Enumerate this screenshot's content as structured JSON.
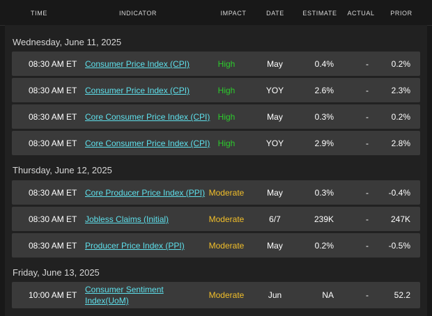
{
  "columns": {
    "time": "TIME",
    "indicator": "INDICATOR",
    "impact": "IMPACT",
    "date": "DATE",
    "estimate": "ESTIMATE",
    "actual": "ACTUAL",
    "prior": "PRIOR"
  },
  "colors": {
    "background": "#181818",
    "row_background": "#3a3a3a",
    "link": "#5ee0ec",
    "impact_high": "#2ccc2c",
    "impact_moderate": "#f2bf2a"
  },
  "days": [
    {
      "title": "Wednesday, June 11, 2025",
      "events": [
        {
          "time": "08:30 AM ET",
          "indicator": "Consumer Price Index (CPI)",
          "impact": "High",
          "date": "May",
          "estimate": "0.4%",
          "actual": "-",
          "prior": "0.2%"
        },
        {
          "time": "08:30 AM ET",
          "indicator": "Consumer Price Index (CPI)",
          "impact": "High",
          "date": "YOY",
          "estimate": "2.6%",
          "actual": "-",
          "prior": "2.3%"
        },
        {
          "time": "08:30 AM ET",
          "indicator": "Core Consumer Price Index (CPI)",
          "impact": "High",
          "date": "May",
          "estimate": "0.3%",
          "actual": "-",
          "prior": "0.2%"
        },
        {
          "time": "08:30 AM ET",
          "indicator": "Core Consumer Price Index (CPI)",
          "impact": "High",
          "date": "YOY",
          "estimate": "2.9%",
          "actual": "-",
          "prior": "2.8%"
        }
      ]
    },
    {
      "title": "Thursday, June 12, 2025",
      "events": [
        {
          "time": "08:30 AM ET",
          "indicator": "Core Producer Price Index (PPI)",
          "impact": "Moderate",
          "date": "May",
          "estimate": "0.3%",
          "actual": "-",
          "prior": "-0.4%"
        },
        {
          "time": "08:30 AM ET",
          "indicator": "Jobless Claims (Initial)",
          "impact": "Moderate",
          "date": "6/7",
          "estimate": "239K",
          "actual": "-",
          "prior": "247K"
        },
        {
          "time": "08:30 AM ET",
          "indicator": "Producer Price Index (PPI)",
          "impact": "Moderate",
          "date": "May",
          "estimate": "0.2%",
          "actual": "-",
          "prior": "-0.5%"
        }
      ]
    },
    {
      "title": "Friday, June 13, 2025",
      "events": [
        {
          "time": "10:00 AM ET",
          "indicator_line1": "Consumer Sentiment",
          "indicator_line2": "Index(UoM)",
          "impact": "Moderate",
          "date": "Jun",
          "estimate": "NA",
          "actual": "-",
          "prior": "52.2"
        }
      ]
    }
  ]
}
